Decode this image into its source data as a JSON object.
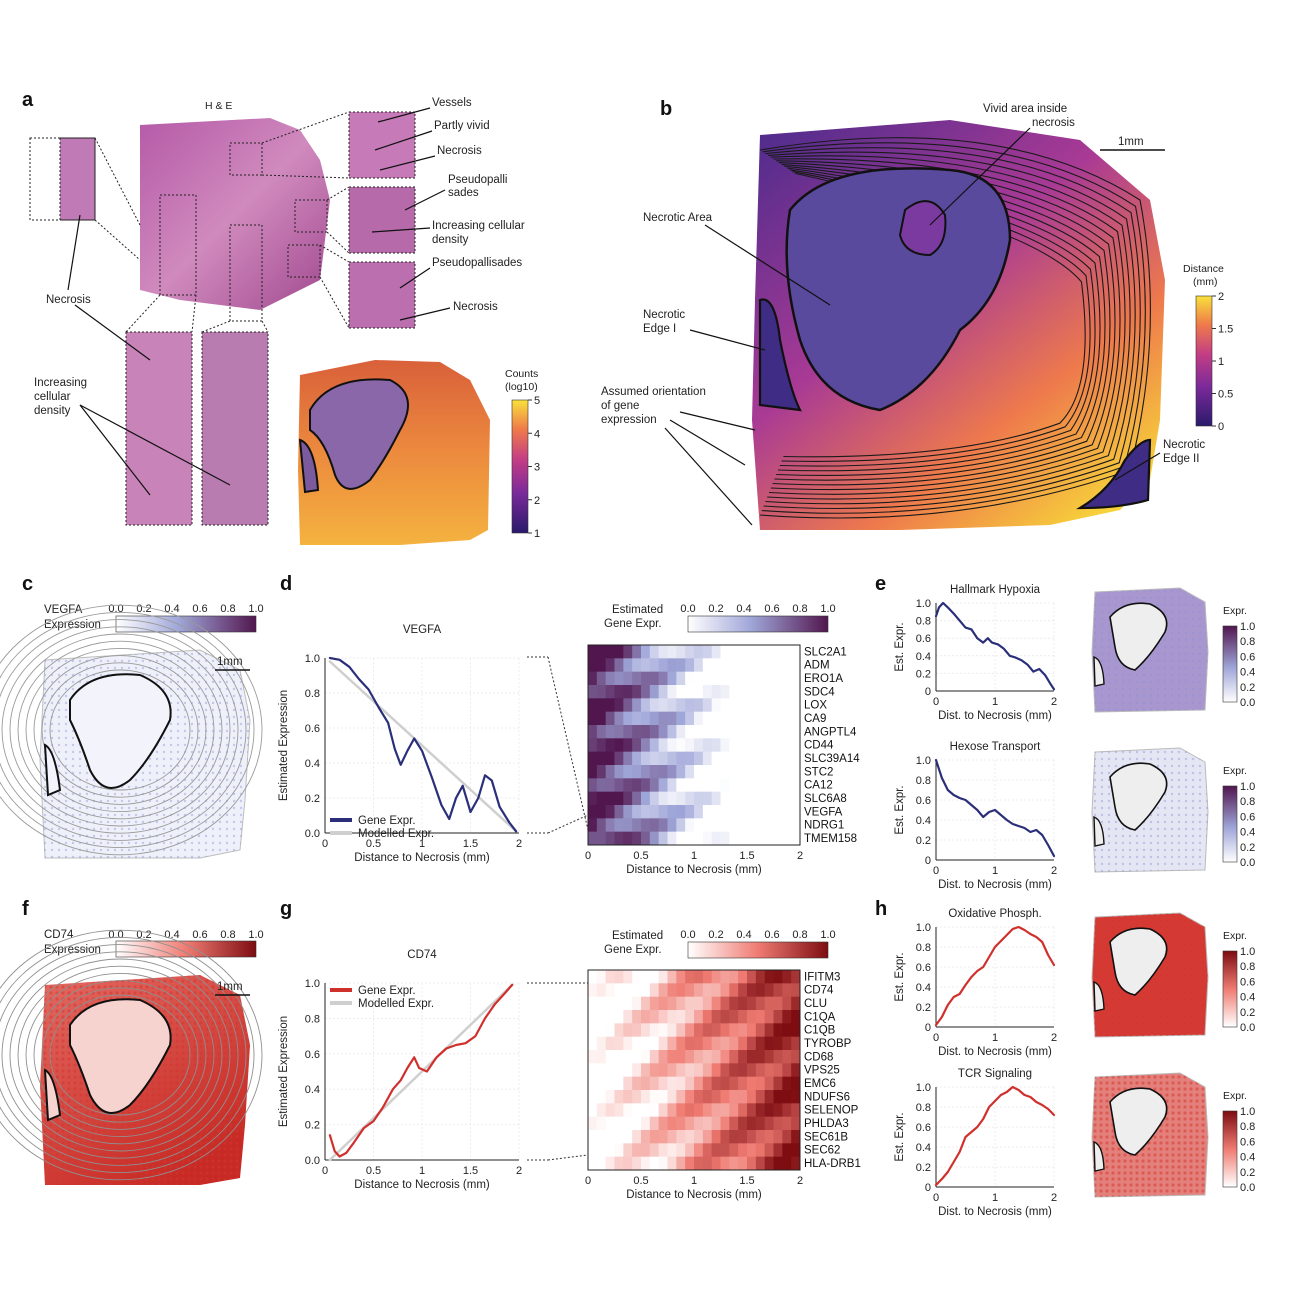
{
  "panels": {
    "a": {
      "label": "a",
      "title": "H & E",
      "annotations": {
        "vessels": "Vessels",
        "partly_vivid": "Partly vivid",
        "necrosis_top": "Necrosis",
        "pseudopalli_line1": "Pseudopalli",
        "pseudopalli_line2": "sades",
        "inc_dens_line1": "Increasing cellular",
        "inc_dens_line2": "density",
        "pseudopallisades": "Pseudopallisades",
        "necrosis_right": "Necrosis",
        "necrosis_left": "Necrosis",
        "inc_left_line1": "Increasing",
        "inc_left_line2": "cellular",
        "inc_left_line3": "density"
      },
      "counts_colorbar": {
        "title_line1": "Counts",
        "title_line2": "(log10)",
        "ticks": [
          "5",
          "4",
          "3",
          "2",
          "1"
        ]
      }
    },
    "b": {
      "label": "b",
      "scalebar": "1mm",
      "annotations": {
        "vivid_line1": "Vivid area inside",
        "vivid_line2": "necrosis",
        "necrotic_area": "Necrotic Area",
        "edge1_line1": "Necrotic",
        "edge1_line2": "Edge I",
        "orient_line1": "Assumed orientation",
        "orient_line2": "of gene",
        "orient_line3": "expression",
        "edge2_line1": "Necrotic",
        "edge2_line2": "Edge II"
      },
      "colorbar": {
        "title_line1": "Distance",
        "title_line2": "(mm)",
        "ticks": [
          "2",
          "1.5",
          "1",
          "0.5",
          "0"
        ]
      }
    },
    "c": {
      "label": "c",
      "title_line1": "VEGFA",
      "title_line2": "Expression",
      "ticks": [
        "0.0",
        "0.2",
        "0.4",
        "0.6",
        "0.8",
        "1.0"
      ],
      "scalebar": "1mm"
    },
    "f": {
      "label": "f",
      "title_line1": "CD74",
      "title_line2": "Expression",
      "ticks": [
        "0.0",
        "0.2",
        "0.4",
        "0.6",
        "0.8",
        "1.0"
      ],
      "scalebar": "1mm"
    },
    "d": {
      "label": "d",
      "heat_title_line1": "Estimated",
      "heat_title_line2": "Gene Expr."
    },
    "g": {
      "label": "g",
      "heat_title_line1": "Estimated",
      "heat_title_line2": "Gene Expr."
    },
    "e": {
      "label": "e",
      "expr_label": "Expr."
    },
    "h": {
      "label": "h",
      "expr_label": "Expr."
    }
  },
  "chart_data": [
    {
      "id": "d-line",
      "type": "line",
      "title": "VEGFA",
      "xlabel": "Distance to Necrosis (mm)",
      "ylabel": "Estimated Expression",
      "xlim": [
        0,
        2
      ],
      "ylim": [
        0,
        1
      ],
      "xticks": [
        "0",
        "0.5",
        "1",
        "1.5",
        "2"
      ],
      "yticks": [
        "0.0",
        "0.2",
        "0.4",
        "0.6",
        "0.8",
        "1.0"
      ],
      "legend_position": "bottom-left",
      "series": [
        {
          "name": "Gene Expr.",
          "color": "#2b2f7a",
          "x": [
            0.05,
            0.15,
            0.25,
            0.35,
            0.45,
            0.55,
            0.65,
            0.72,
            0.78,
            0.85,
            0.92,
            1.0,
            1.1,
            1.2,
            1.28,
            1.35,
            1.42,
            1.5,
            1.58,
            1.65,
            1.72,
            1.8,
            1.9,
            1.97
          ],
          "y": [
            1.0,
            0.99,
            0.95,
            0.88,
            0.82,
            0.72,
            0.63,
            0.48,
            0.39,
            0.47,
            0.54,
            0.47,
            0.32,
            0.16,
            0.08,
            0.2,
            0.27,
            0.12,
            0.2,
            0.33,
            0.3,
            0.15,
            0.06,
            0.01
          ]
        },
        {
          "name": "Modelled Expr.",
          "color": "#cfcfcf",
          "x": [
            0.05,
            1.97
          ],
          "y": [
            0.98,
            0.01
          ]
        }
      ]
    },
    {
      "id": "d-heat",
      "type": "heatmap",
      "title_line1": "Estimated",
      "title_line2": "Gene Expr.",
      "xlabel": "Distance to Necrosis (mm)",
      "xlim": [
        0,
        2
      ],
      "xticks": [
        "0",
        "0.5",
        "1",
        "1.5",
        "2"
      ],
      "colorbar_ticks": [
        "0.0",
        "0.2",
        "0.4",
        "0.6",
        "0.8",
        "1.0"
      ],
      "rows": [
        "SLC2A1",
        "ADM",
        "ERO1A",
        "SDC4",
        "LOX",
        "CA9",
        "ANGPTL4",
        "CD44",
        "SLC39A14",
        "STC2",
        "CA12",
        "SLC6A8",
        "VEGFA",
        "NDRG1",
        "TMEM158"
      ],
      "trend": "decreasing"
    },
    {
      "id": "g-line",
      "type": "line",
      "title": "CD74",
      "xlabel": "Distance to Necrosis (mm)",
      "ylabel": "Estimated Expression",
      "xlim": [
        0,
        2
      ],
      "ylim": [
        0,
        1
      ],
      "xticks": [
        "0",
        "0.5",
        "1",
        "1.5",
        "2"
      ],
      "yticks": [
        "0.0",
        "0.2",
        "0.4",
        "0.6",
        "0.8",
        "1.0"
      ],
      "legend_position": "top-left",
      "series": [
        {
          "name": "Gene Expr.",
          "color": "#d0302c",
          "x": [
            0.05,
            0.1,
            0.15,
            0.22,
            0.3,
            0.4,
            0.5,
            0.6,
            0.7,
            0.78,
            0.85,
            0.92,
            0.97,
            1.05,
            1.15,
            1.25,
            1.35,
            1.45,
            1.55,
            1.65,
            1.75,
            1.85,
            1.93
          ],
          "y": [
            0.14,
            0.05,
            0.02,
            0.04,
            0.1,
            0.18,
            0.22,
            0.3,
            0.4,
            0.45,
            0.52,
            0.58,
            0.52,
            0.5,
            0.58,
            0.63,
            0.65,
            0.66,
            0.7,
            0.8,
            0.88,
            0.94,
            0.99
          ]
        },
        {
          "name": "Modelled Expr.",
          "color": "#cfcfcf",
          "x": [
            0.05,
            1.93
          ],
          "y": [
            0.0,
            0.99
          ]
        }
      ]
    },
    {
      "id": "g-heat",
      "type": "heatmap",
      "title_line1": "Estimated",
      "title_line2": "Gene Expr.",
      "xlabel": "Distance to Necrosis (mm)",
      "xlim": [
        0,
        2
      ],
      "xticks": [
        "0",
        "0.5",
        "1",
        "1.5",
        "2"
      ],
      "colorbar_ticks": [
        "0.0",
        "0.2",
        "0.4",
        "0.6",
        "0.8",
        "1.0"
      ],
      "rows": [
        "IFITM3",
        "CD74",
        "CLU",
        "C1QA",
        "C1QB",
        "TYROBP",
        "CD68",
        "VPS25",
        "EMC6",
        "NDUFS6",
        "SELENOP",
        "PHLDA3",
        "SEC61B",
        "SEC62",
        "HLA-DRB1"
      ],
      "trend": "increasing"
    },
    {
      "id": "e1",
      "type": "line",
      "title": "Hallmark Hypoxia",
      "xlabel": "Dist. to Necrosis (mm)",
      "ylabel": "Est. Expr.",
      "xlim": [
        0,
        2
      ],
      "ylim": [
        0,
        1
      ],
      "xticks": [
        "0",
        "1",
        "2"
      ],
      "yticks": [
        "0",
        "0.2",
        "0.4",
        "0.6",
        "0.8",
        "1.0"
      ],
      "series": [
        {
          "color": "#2b2f7a",
          "x": [
            0.0,
            0.05,
            0.12,
            0.2,
            0.3,
            0.4,
            0.5,
            0.6,
            0.7,
            0.8,
            0.88,
            0.95,
            1.05,
            1.15,
            1.25,
            1.35,
            1.45,
            1.55,
            1.65,
            1.75,
            1.85,
            1.95,
            2.0
          ],
          "y": [
            0.85,
            0.95,
            1.0,
            0.95,
            0.88,
            0.8,
            0.72,
            0.7,
            0.6,
            0.55,
            0.6,
            0.55,
            0.53,
            0.48,
            0.4,
            0.38,
            0.35,
            0.3,
            0.22,
            0.25,
            0.18,
            0.07,
            0.02
          ]
        }
      ]
    },
    {
      "id": "e2",
      "type": "line",
      "title": "Hexose Transport",
      "xlabel": "Dist. to Necrosis (mm)",
      "ylabel": "Est. Expr.",
      "xlim": [
        0,
        2
      ],
      "ylim": [
        0,
        1
      ],
      "xticks": [
        "0",
        "1",
        "2"
      ],
      "yticks": [
        "0",
        "0.2",
        "0.4",
        "0.6",
        "0.8",
        "1.0"
      ],
      "series": [
        {
          "color": "#2b2f7a",
          "x": [
            0.0,
            0.1,
            0.2,
            0.3,
            0.4,
            0.5,
            0.6,
            0.7,
            0.8,
            0.9,
            1.0,
            1.1,
            1.2,
            1.3,
            1.4,
            1.5,
            1.6,
            1.7,
            1.8,
            1.9,
            2.0
          ],
          "y": [
            1.0,
            0.82,
            0.7,
            0.65,
            0.62,
            0.6,
            0.55,
            0.5,
            0.43,
            0.48,
            0.5,
            0.45,
            0.4,
            0.36,
            0.34,
            0.32,
            0.28,
            0.3,
            0.25,
            0.15,
            0.04
          ]
        }
      ]
    },
    {
      "id": "h1",
      "type": "line",
      "title": "Oxidative Phosph.",
      "xlabel": "Dist. to Necrosis (mm)",
      "ylabel": "Est. Expr.",
      "xlim": [
        0,
        2
      ],
      "ylim": [
        0,
        1
      ],
      "xticks": [
        "0",
        "1",
        "2"
      ],
      "yticks": [
        "0",
        "0.2",
        "0.4",
        "0.6",
        "0.8",
        "1.0"
      ],
      "series": [
        {
          "color": "#d0302c",
          "x": [
            0.0,
            0.1,
            0.2,
            0.3,
            0.4,
            0.5,
            0.6,
            0.7,
            0.8,
            0.9,
            1.0,
            1.1,
            1.2,
            1.3,
            1.4,
            1.5,
            1.6,
            1.7,
            1.8,
            1.9,
            2.0
          ],
          "y": [
            0.02,
            0.1,
            0.22,
            0.3,
            0.33,
            0.42,
            0.5,
            0.56,
            0.6,
            0.7,
            0.8,
            0.86,
            0.92,
            0.98,
            1.0,
            0.97,
            0.93,
            0.9,
            0.85,
            0.72,
            0.62
          ]
        }
      ]
    },
    {
      "id": "h2",
      "type": "line",
      "title": "TCR Signaling",
      "xlabel": "Dist. to Necrosis (mm)",
      "ylabel": "Est. Expr.",
      "xlim": [
        0,
        2
      ],
      "ylim": [
        0,
        1
      ],
      "xticks": [
        "0",
        "1",
        "2"
      ],
      "yticks": [
        "0",
        "0.2",
        "0.4",
        "0.6",
        "0.8",
        "1.0"
      ],
      "series": [
        {
          "color": "#d0302c",
          "x": [
            0.0,
            0.1,
            0.2,
            0.3,
            0.4,
            0.5,
            0.6,
            0.7,
            0.8,
            0.9,
            1.0,
            1.1,
            1.2,
            1.3,
            1.4,
            1.5,
            1.6,
            1.7,
            1.8,
            1.9,
            2.0
          ],
          "y": [
            0.02,
            0.08,
            0.15,
            0.25,
            0.35,
            0.5,
            0.55,
            0.6,
            0.68,
            0.8,
            0.86,
            0.92,
            0.95,
            1.0,
            0.97,
            0.92,
            0.9,
            0.85,
            0.82,
            0.78,
            0.72
          ]
        }
      ]
    }
  ]
}
